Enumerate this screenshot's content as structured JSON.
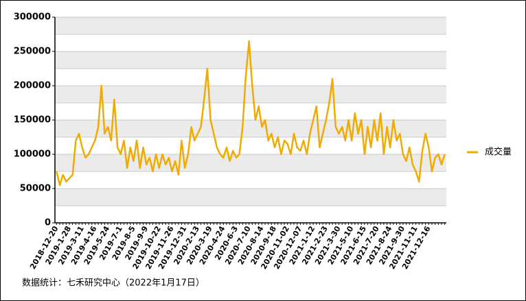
{
  "chart_data": {
    "type": "line",
    "source": "数据统计：七禾研究中心（2022年1月17日）",
    "categories": [
      "2018-12-20",
      null,
      null,
      null,
      "2019-1-28",
      null,
      null,
      null,
      "2019-3-11",
      null,
      null,
      null,
      "2019-4-16",
      null,
      null,
      null,
      "2019-5-24",
      null,
      null,
      null,
      "2019-7-1",
      null,
      null,
      null,
      "2019-8-5",
      null,
      null,
      null,
      "2019-9-9",
      null,
      null,
      null,
      "2019-10-22",
      null,
      null,
      null,
      "2019-11-26",
      null,
      null,
      null,
      "2019-12-31",
      null,
      null,
      null,
      "2020-2-13",
      null,
      null,
      null,
      "2020-3-19",
      null,
      null,
      null,
      "2020-4-24",
      null,
      null,
      null,
      "2020-6-3",
      null,
      null,
      null,
      "2020-7-10",
      null,
      null,
      null,
      "2020-8-14",
      null,
      null,
      null,
      "2020-9-18",
      null,
      null,
      null,
      "2020-11-02",
      null,
      null,
      null,
      "2020-12-07",
      null,
      null,
      null,
      "2021-1-12",
      null,
      null,
      null,
      "2021-2-23",
      null,
      null,
      null,
      "2021-3-30",
      null,
      null,
      null,
      "2021-5-10",
      null,
      null,
      null,
      "2021-6-15",
      null,
      null,
      null,
      "2021-7-20",
      null,
      null,
      null,
      "2021-8-24",
      null,
      null,
      null,
      "2021-9-30",
      null,
      null,
      null,
      "2021-11-11",
      null,
      null,
      null,
      "2021-12-16",
      null,
      null,
      null,
      null,
      null
    ],
    "series": [
      {
        "name": "成交量",
        "color": "#f0ab00",
        "values": [
          75000,
          55000,
          70000,
          60000,
          65000,
          70000,
          120000,
          130000,
          110000,
          95000,
          100000,
          110000,
          120000,
          140000,
          200000,
          130000,
          140000,
          120000,
          180000,
          110000,
          100000,
          120000,
          80000,
          110000,
          90000,
          120000,
          80000,
          110000,
          85000,
          95000,
          75000,
          100000,
          80000,
          100000,
          85000,
          95000,
          75000,
          90000,
          70000,
          120000,
          80000,
          100000,
          140000,
          120000,
          130000,
          140000,
          180000,
          225000,
          150000,
          130000,
          110000,
          100000,
          95000,
          110000,
          90000,
          105000,
          95000,
          100000,
          140000,
          215000,
          265000,
          200000,
          150000,
          170000,
          140000,
          150000,
          120000,
          130000,
          110000,
          125000,
          100000,
          120000,
          115000,
          100000,
          130000,
          110000,
          105000,
          120000,
          100000,
          130000,
          150000,
          170000,
          110000,
          130000,
          150000,
          175000,
          210000,
          140000,
          130000,
          140000,
          120000,
          150000,
          120000,
          160000,
          130000,
          150000,
          100000,
          140000,
          110000,
          150000,
          120000,
          160000,
          100000,
          140000,
          110000,
          150000,
          120000,
          130000,
          100000,
          90000,
          110000,
          85000,
          75000,
          60000,
          105000,
          130000,
          110000,
          75000,
          95000,
          100000,
          85000,
          100000
        ]
      }
    ],
    "ylim": [
      0,
      300000
    ],
    "yticks": [
      0,
      50000,
      100000,
      150000,
      200000,
      250000,
      300000
    ],
    "grid": true,
    "legend": "right"
  }
}
